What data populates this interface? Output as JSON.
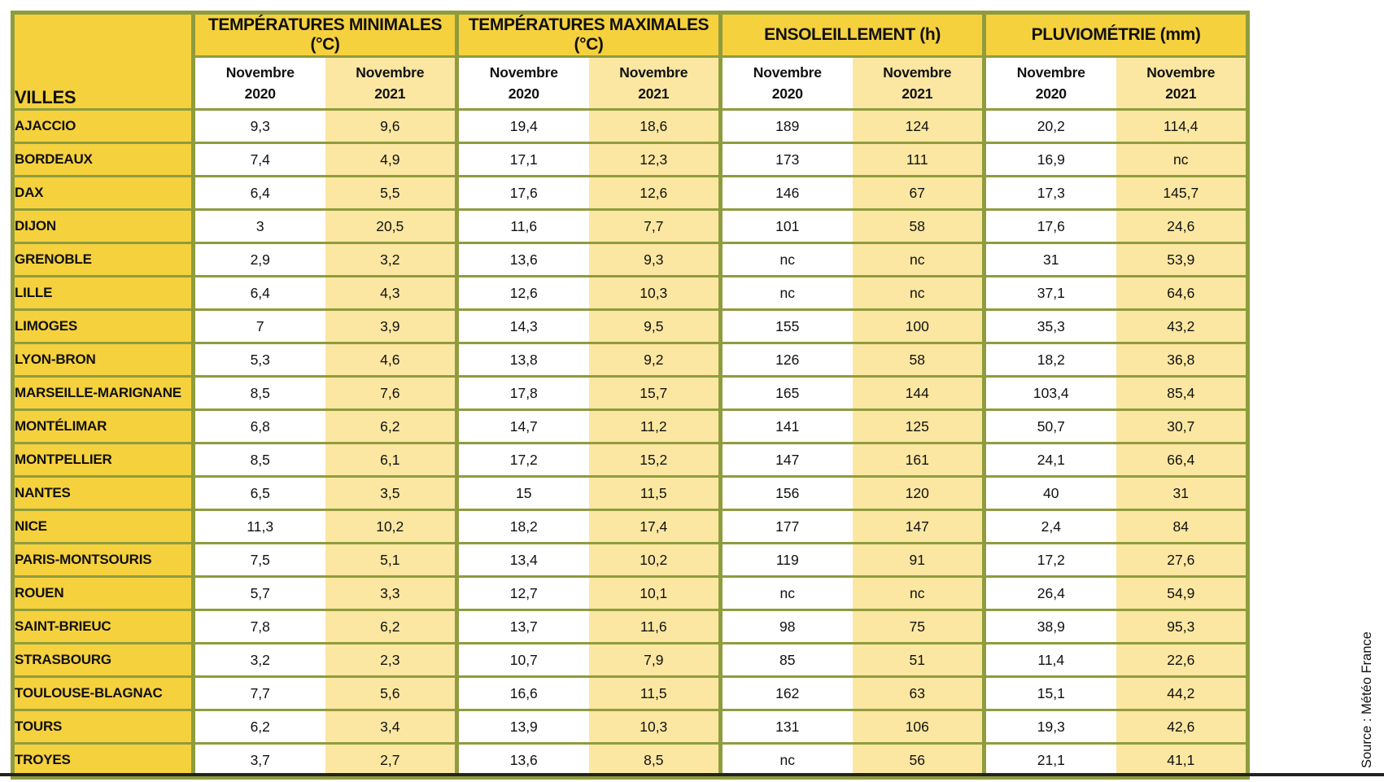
{
  "colors": {
    "header_gold": "#f5d13e",
    "light_yellow_2021": "#fbe7a1",
    "white_2020": "#ffffff",
    "border_olive": "#8f9c3d",
    "text": "#111111",
    "bottom_rule": "#222222"
  },
  "source_caption": "Source : Météo France",
  "chart_data": {
    "type": "table",
    "row_header_label": "VILLES",
    "groups": [
      {
        "label": "TEMPÉRATURES MINIMALES (°C)"
      },
      {
        "label": "TEMPÉRATURES MAXIMALES (°C)"
      },
      {
        "label": "ENSOLEILLEMENT (h)"
      },
      {
        "label": "PLUVIOMÉTRIE (mm)"
      }
    ],
    "subcolumn_word": "Novembre",
    "subcolumn_years": [
      "2020",
      "2021"
    ],
    "rows": [
      {
        "city": "AJACCIO",
        "values": [
          "9,3",
          "9,6",
          "19,4",
          "18,6",
          "189",
          "124",
          "20,2",
          "114,4"
        ]
      },
      {
        "city": "BORDEAUX",
        "values": [
          "7,4",
          "4,9",
          "17,1",
          "12,3",
          "173",
          "111",
          "16,9",
          "nc"
        ]
      },
      {
        "city": "DAX",
        "values": [
          "6,4",
          "5,5",
          "17,6",
          "12,6",
          "146",
          "67",
          "17,3",
          "145,7"
        ]
      },
      {
        "city": "DIJON",
        "values": [
          "3",
          "20,5",
          "11,6",
          "7,7",
          "101",
          "58",
          "17,6",
          "24,6"
        ]
      },
      {
        "city": "GRENOBLE",
        "values": [
          "2,9",
          "3,2",
          "13,6",
          "9,3",
          "nc",
          "nc",
          "31",
          "53,9"
        ]
      },
      {
        "city": "LILLE",
        "values": [
          "6,4",
          "4,3",
          "12,6",
          "10,3",
          "nc",
          "nc",
          "37,1",
          "64,6"
        ]
      },
      {
        "city": "LIMOGES",
        "values": [
          "7",
          "3,9",
          "14,3",
          "9,5",
          "155",
          "100",
          "35,3",
          "43,2"
        ]
      },
      {
        "city": "LYON-BRON",
        "values": [
          "5,3",
          "4,6",
          "13,8",
          "9,2",
          "126",
          "58",
          "18,2",
          "36,8"
        ]
      },
      {
        "city": "MARSEILLE-MARIGNANE",
        "values": [
          "8,5",
          "7,6",
          "17,8",
          "15,7",
          "165",
          "144",
          "103,4",
          "85,4"
        ]
      },
      {
        "city": "MONTÉLIMAR",
        "values": [
          "6,8",
          "6,2",
          "14,7",
          "11,2",
          "141",
          "125",
          "50,7",
          "30,7"
        ]
      },
      {
        "city": "MONTPELLIER",
        "values": [
          "8,5",
          "6,1",
          "17,2",
          "15,2",
          "147",
          "161",
          "24,1",
          "66,4"
        ]
      },
      {
        "city": "NANTES",
        "values": [
          "6,5",
          "3,5",
          "15",
          "11,5",
          "156",
          "120",
          "40",
          "31"
        ]
      },
      {
        "city": "NICE",
        "values": [
          "11,3",
          "10,2",
          "18,2",
          "17,4",
          "177",
          "147",
          "2,4",
          "84"
        ]
      },
      {
        "city": "PARIS-MONTSOURIS",
        "values": [
          "7,5",
          "5,1",
          "13,4",
          "10,2",
          "119",
          "91",
          "17,2",
          "27,6"
        ]
      },
      {
        "city": "ROUEN",
        "values": [
          "5,7",
          "3,3",
          "12,7",
          "10,1",
          "nc",
          "nc",
          "26,4",
          "54,9"
        ]
      },
      {
        "city": "SAINT-BRIEUC",
        "values": [
          "7,8",
          "6,2",
          "13,7",
          "11,6",
          "98",
          "75",
          "38,9",
          "95,3"
        ]
      },
      {
        "city": "STRASBOURG",
        "values": [
          "3,2",
          "2,3",
          "10,7",
          "7,9",
          "85",
          "51",
          "11,4",
          "22,6"
        ]
      },
      {
        "city": "TOULOUSE-BLAGNAC",
        "values": [
          "7,7",
          "5,6",
          "16,6",
          "11,5",
          "162",
          "63",
          "15,1",
          "44,2"
        ]
      },
      {
        "city": "TOURS",
        "values": [
          "6,2",
          "3,4",
          "13,9",
          "10,3",
          "131",
          "106",
          "19,3",
          "42,6"
        ]
      },
      {
        "city": "TROYES",
        "values": [
          "3,7",
          "2,7",
          "13,6",
          "8,5",
          "nc",
          "56",
          "21,1",
          "41,1"
        ]
      }
    ],
    "source": "Source : Météo France"
  }
}
